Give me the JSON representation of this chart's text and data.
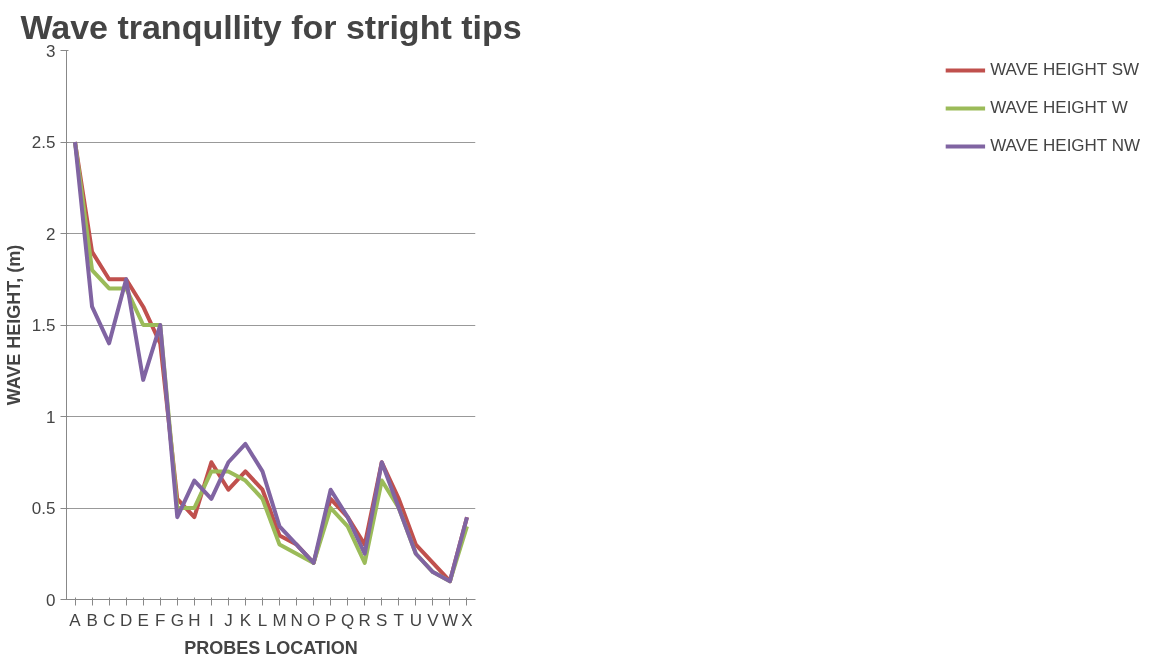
{
  "chart_data": {
    "type": "line",
    "title": "Wave tranqullity for stright tips",
    "xlabel": "PROBES LOCATION",
    "ylabel": "WAVE HEIGHT, (m)",
    "categories": [
      "A",
      "B",
      "C",
      "D",
      "E",
      "F",
      "G",
      "H",
      "I",
      "J",
      "K",
      "L",
      "M",
      "N",
      "O",
      "P",
      "Q",
      "R",
      "S",
      "T",
      "U",
      "V",
      "W",
      "X"
    ],
    "series": [
      {
        "name": "WAVE HEIGHT SW",
        "color": "#c0504d",
        "values": [
          2.5,
          1.9,
          1.75,
          1.75,
          1.6,
          1.4,
          0.55,
          0.45,
          0.75,
          0.6,
          0.7,
          0.6,
          0.35,
          0.3,
          0.2,
          0.55,
          0.45,
          0.3,
          0.75,
          0.55,
          0.3,
          0.2,
          0.1,
          0.45
        ]
      },
      {
        "name": "WAVE HEIGHT W",
        "color": "#9bbb59",
        "values": [
          2.5,
          1.8,
          1.7,
          1.7,
          1.5,
          1.5,
          0.5,
          0.5,
          0.7,
          0.7,
          0.65,
          0.55,
          0.3,
          0.25,
          0.2,
          0.5,
          0.4,
          0.2,
          0.65,
          0.5,
          0.25,
          0.15,
          0.1,
          0.4
        ]
      },
      {
        "name": "WAVE HEIGHT NW",
        "color": "#8064a2",
        "values": [
          2.5,
          1.6,
          1.4,
          1.75,
          1.2,
          1.5,
          0.45,
          0.65,
          0.55,
          0.75,
          0.85,
          0.7,
          0.4,
          0.3,
          0.2,
          0.6,
          0.45,
          0.25,
          0.75,
          0.5,
          0.25,
          0.15,
          0.1,
          0.45
        ]
      }
    ],
    "ylim": [
      0,
      3
    ],
    "yticks": [
      0,
      0.5,
      1,
      1.5,
      2,
      2.5,
      3
    ],
    "grid": "y",
    "legend": "right",
    "marker": "none",
    "line_style": "solid"
  }
}
